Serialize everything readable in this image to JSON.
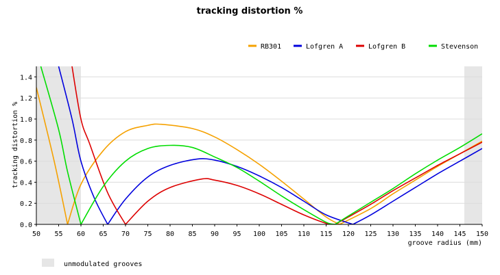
{
  "chart_data": {
    "type": "line",
    "title": "tracking distortion %",
    "xlabel": "groove radius (mm)",
    "ylabel": "tracking distortion %",
    "xlim": [
      50,
      150
    ],
    "ylim": [
      0,
      1.5
    ],
    "xticks": [
      50,
      55,
      60,
      65,
      70,
      75,
      80,
      85,
      90,
      95,
      100,
      105,
      110,
      115,
      120,
      125,
      130,
      135,
      140,
      145,
      150
    ],
    "yticks": [
      0.0,
      0.2,
      0.4,
      0.6,
      0.8,
      1.0,
      1.2,
      1.4
    ],
    "grid": true,
    "shaded_regions": [
      {
        "from": 50,
        "to": 60,
        "label": "unmodulated grooves",
        "color": "#e6e6e6"
      },
      {
        "from": 146,
        "to": 150,
        "label": "unmodulated grooves",
        "color": "#e6e6e6"
      }
    ],
    "shaded_label": "unmodulated grooves",
    "series": [
      {
        "name": "RB301",
        "color": "#f5a100",
        "x": [
          50,
          54,
          57,
          60,
          65,
          70,
          75,
          78,
          85,
          90,
          95,
          100,
          105,
          110,
          115,
          118,
          125,
          130,
          135,
          140,
          145,
          150
        ],
        "y": [
          1.3,
          0.6,
          0.0,
          0.38,
          0.7,
          0.88,
          0.94,
          0.95,
          0.91,
          0.83,
          0.71,
          0.57,
          0.41,
          0.24,
          0.07,
          0.0,
          0.15,
          0.29,
          0.42,
          0.55,
          0.67,
          0.79
        ]
      },
      {
        "name": "Lofgren A",
        "color": "#0000dd",
        "x": [
          55,
          58,
          60,
          63,
          66,
          70,
          75,
          80,
          86,
          90,
          95,
          100,
          105,
          110,
          115,
          121,
          125,
          130,
          135,
          140,
          145,
          150
        ],
        "y": [
          1.5,
          1.0,
          0.6,
          0.25,
          0.0,
          0.24,
          0.45,
          0.56,
          0.62,
          0.61,
          0.55,
          0.46,
          0.35,
          0.22,
          0.09,
          0.0,
          0.09,
          0.22,
          0.35,
          0.48,
          0.6,
          0.72
        ]
      },
      {
        "name": "Lofgren B",
        "color": "#dd0000",
        "x": [
          58,
          60,
          62,
          66,
          70,
          75,
          80,
          87,
          90,
          95,
          100,
          105,
          110,
          115,
          117,
          120,
          125,
          130,
          135,
          140,
          145,
          150
        ],
        "y": [
          1.5,
          1.0,
          0.76,
          0.3,
          0.0,
          0.22,
          0.35,
          0.43,
          0.42,
          0.37,
          0.29,
          0.19,
          0.09,
          0.01,
          0.0,
          0.07,
          0.19,
          0.32,
          0.44,
          0.56,
          0.67,
          0.78
        ]
      },
      {
        "name": "Stevenson",
        "color": "#00dd00",
        "x": [
          51,
          55,
          57,
          60,
          65,
          70,
          75,
          80,
          85,
          90,
          95,
          100,
          105,
          110,
          115,
          117,
          120,
          125,
          130,
          135,
          140,
          145,
          150
        ],
        "y": [
          1.5,
          0.9,
          0.5,
          0.0,
          0.36,
          0.6,
          0.72,
          0.75,
          0.73,
          0.64,
          0.54,
          0.41,
          0.27,
          0.14,
          0.02,
          0.0,
          0.08,
          0.21,
          0.34,
          0.48,
          0.61,
          0.73,
          0.86
        ]
      }
    ],
    "legend_position": "top-right"
  }
}
